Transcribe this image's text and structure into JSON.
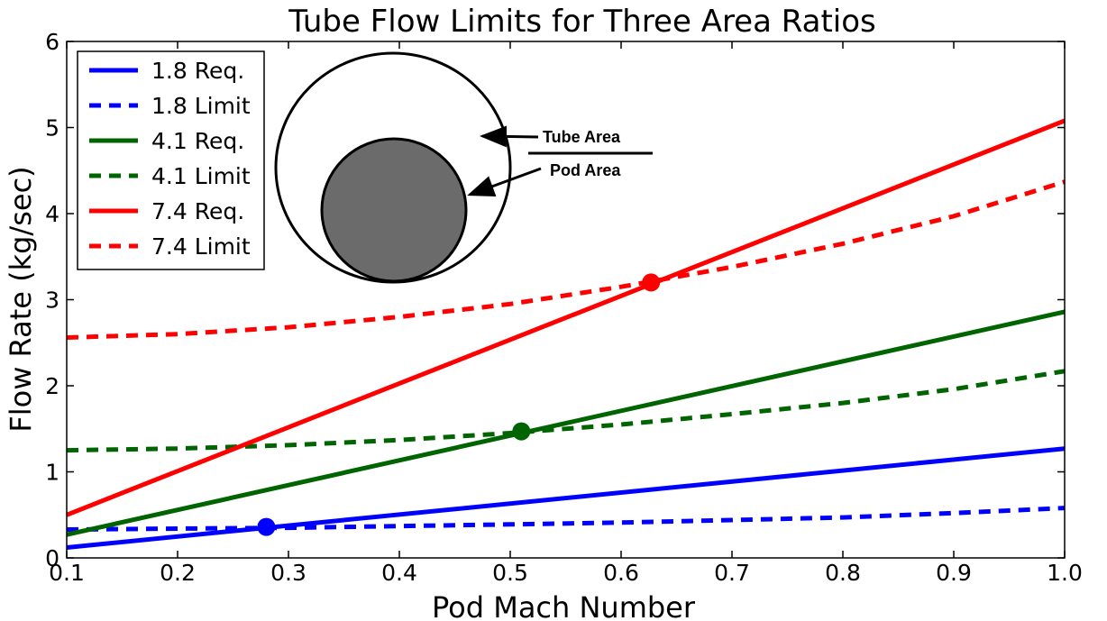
{
  "chart_data": {
    "type": "line",
    "title": "Tube Flow Limits for Three Area Ratios",
    "xlabel": "Pod Mach Number",
    "ylabel": "Flow Rate (kg/sec)",
    "xlim": [
      0.1,
      1.0
    ],
    "ylim": [
      0,
      6
    ],
    "xticks": [
      "0.1",
      "0.2",
      "0.3",
      "0.4",
      "0.5",
      "0.6",
      "0.7",
      "0.8",
      "0.9",
      "1.0"
    ],
    "yticks": [
      "0",
      "1",
      "2",
      "3",
      "4",
      "5",
      "6"
    ],
    "grid": false,
    "legend_position": "top-left",
    "series": [
      {
        "name": "1.8 Req.",
        "color": "#0000ff",
        "style": "solid",
        "x": [
          0.1,
          1.0
        ],
        "y": [
          0.12,
          1.27
        ]
      },
      {
        "name": "1.8 Limit",
        "color": "#0000ff",
        "style": "dashed",
        "x": [
          0.1,
          0.2,
          0.3,
          0.4,
          0.5,
          0.6,
          0.7,
          0.8,
          0.9,
          1.0
        ],
        "y": [
          0.33,
          0.34,
          0.35,
          0.37,
          0.39,
          0.41,
          0.44,
          0.47,
          0.52,
          0.58
        ]
      },
      {
        "name": "4.1 Req.",
        "color": "#006400",
        "style": "solid",
        "x": [
          0.1,
          1.0
        ],
        "y": [
          0.27,
          2.86
        ]
      },
      {
        "name": "4.1 Limit",
        "color": "#006400",
        "style": "dashed",
        "x": [
          0.1,
          0.2,
          0.3,
          0.4,
          0.5,
          0.6,
          0.7,
          0.8,
          0.9,
          1.0
        ],
        "y": [
          1.25,
          1.27,
          1.31,
          1.37,
          1.45,
          1.55,
          1.67,
          1.8,
          1.96,
          2.17
        ]
      },
      {
        "name": "7.4 Req.",
        "color": "#ff0000",
        "style": "solid",
        "x": [
          0.1,
          1.0
        ],
        "y": [
          0.5,
          5.08
        ]
      },
      {
        "name": "7.4 Limit",
        "color": "#ff0000",
        "style": "dashed",
        "x": [
          0.1,
          0.2,
          0.3,
          0.4,
          0.5,
          0.6,
          0.7,
          0.8,
          0.9,
          1.0
        ],
        "y": [
          2.56,
          2.6,
          2.68,
          2.8,
          2.95,
          3.15,
          3.38,
          3.65,
          3.97,
          4.37
        ]
      }
    ],
    "intersections": [
      {
        "series": "1.8",
        "color": "#0000ff",
        "x": 0.28,
        "y": 0.36
      },
      {
        "series": "4.1",
        "color": "#006400",
        "x": 0.51,
        "y": 1.47
      },
      {
        "series": "7.4",
        "color": "#ff0000",
        "x": 0.627,
        "y": 3.2
      }
    ],
    "inset": {
      "numerator_label": "Tube Area",
      "denominator_label": "Pod Area",
      "pod_fill": "#6b6b6b"
    }
  }
}
